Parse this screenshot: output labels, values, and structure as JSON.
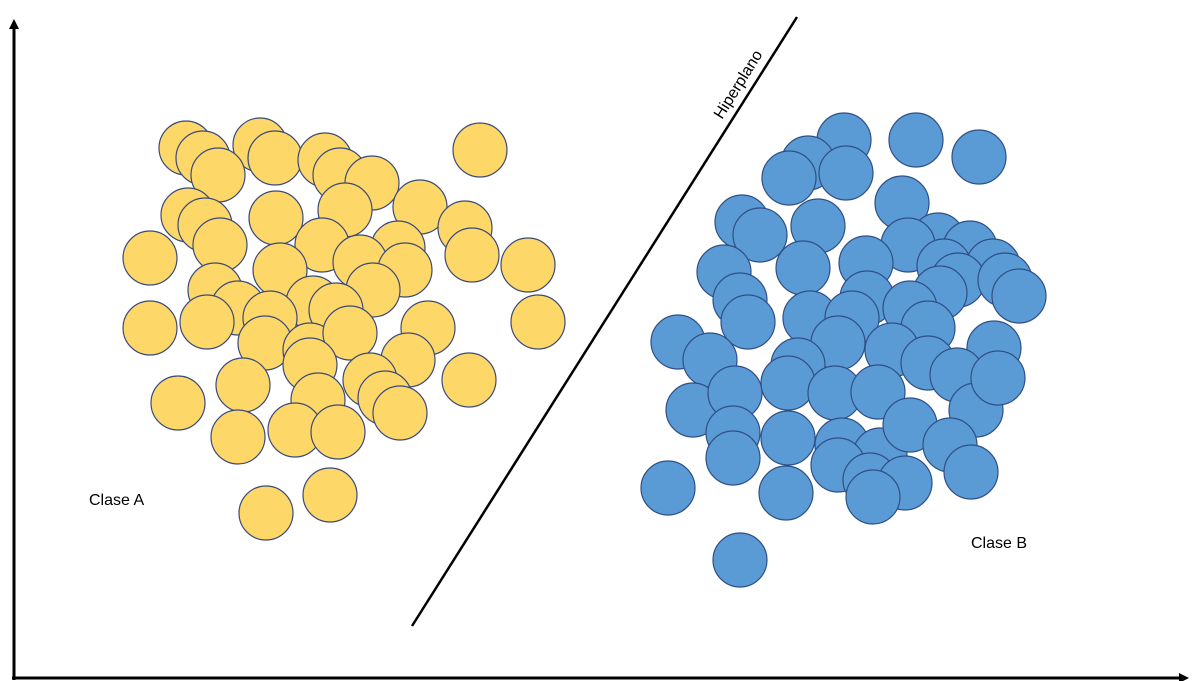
{
  "diagram": {
    "hyperplane_label": "Hiperplano",
    "class_a_label": "Clase A",
    "class_b_label": "Clase B"
  },
  "colors": {
    "class_a_fill": "#FDD868",
    "class_a_stroke": "#3A4A7A",
    "class_b_fill": "#5B9BD5",
    "class_b_stroke": "#2F4F86",
    "axis": "#000000",
    "background": "#FFFFFF"
  }
}
